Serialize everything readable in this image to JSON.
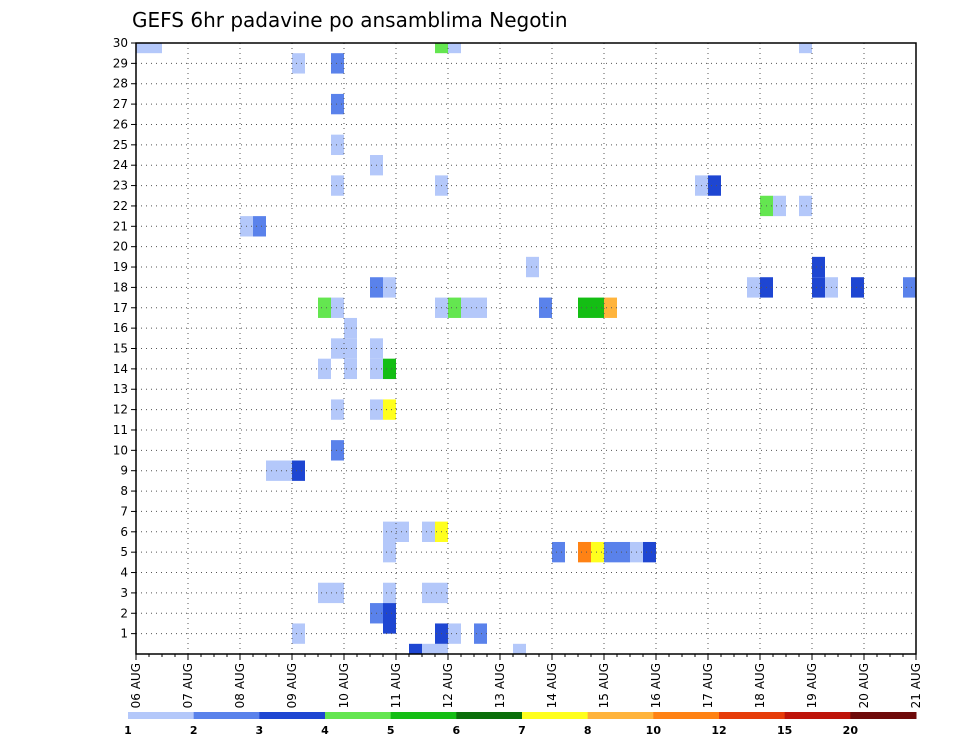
{
  "chart_data": {
    "type": "heatmap",
    "title": "GEFS 6hr padavine po ansamblima Negotin",
    "xlabel": "",
    "ylabel": "",
    "x_tick_labels": [
      "06 AUG",
      "07 AUG",
      "08 AUG",
      "09 AUG",
      "10 AUG",
      "11 AUG",
      "12 AUG",
      "13 AUG",
      "14 AUG",
      "15 AUG",
      "16 AUG",
      "17 AUG",
      "18 AUG",
      "19 AUG",
      "20 AUG",
      "21 AUG"
    ],
    "y_tick_labels": [
      "1",
      "2",
      "3",
      "4",
      "5",
      "6",
      "7",
      "8",
      "9",
      "10",
      "11",
      "12",
      "13",
      "14",
      "15",
      "16",
      "17",
      "18",
      "19",
      "20",
      "21",
      "22",
      "23",
      "24",
      "25",
      "26",
      "27",
      "28",
      "29",
      "30"
    ],
    "x_range_days": [
      0,
      15
    ],
    "y_range": [
      0,
      30
    ],
    "grid": true,
    "legend": {
      "placement": "bottom",
      "labels": [
        "1",
        "2",
        "3",
        "4",
        "5",
        "6",
        "7",
        "8",
        "10",
        "12",
        "15",
        "20"
      ],
      "colors": [
        "#b4c8fa",
        "#5a82eb",
        "#1e46d2",
        "#64e650",
        "#14be14",
        "#0a6e0a",
        "#ffff1e",
        "#ffb43c",
        "#ff8214",
        "#e63c0a",
        "#be140a",
        "#6e0a0a"
      ]
    },
    "cells": [
      {
        "day": 5.25,
        "member": 0,
        "level": 3
      },
      {
        "day": 5.5,
        "member": 0,
        "level": 1
      },
      {
        "day": 5.75,
        "member": 0,
        "level": 1
      },
      {
        "day": 5.75,
        "member": 1,
        "level": 3
      },
      {
        "day": 6.0,
        "member": 1,
        "level": 1
      },
      {
        "day": 6.5,
        "member": 1,
        "level": 2
      },
      {
        "day": 7.25,
        "member": 0,
        "level": 1
      },
      {
        "day": 0.0,
        "member": 30,
        "level": 1
      },
      {
        "day": 0.25,
        "member": 30,
        "level": 1
      },
      {
        "day": 5.75,
        "member": 30,
        "level": 4
      },
      {
        "day": 6.0,
        "member": 30,
        "level": 1
      },
      {
        "day": 12.75,
        "member": 30,
        "level": 1
      },
      {
        "day": 3.0,
        "member": 29,
        "level": 1
      },
      {
        "day": 3.75,
        "member": 29,
        "level": 2
      },
      {
        "day": 3.75,
        "member": 27,
        "level": 2
      },
      {
        "day": 3.75,
        "member": 25,
        "level": 1
      },
      {
        "day": 4.5,
        "member": 24,
        "level": 1
      },
      {
        "day": 3.75,
        "member": 23,
        "level": 1
      },
      {
        "day": 5.75,
        "member": 23,
        "level": 1
      },
      {
        "day": 10.75,
        "member": 23,
        "level": 1
      },
      {
        "day": 11.0,
        "member": 23,
        "level": 3
      },
      {
        "day": 12.0,
        "member": 22,
        "level": 4
      },
      {
        "day": 12.25,
        "member": 22,
        "level": 1
      },
      {
        "day": 12.75,
        "member": 22,
        "level": 1
      },
      {
        "day": 2.0,
        "member": 21,
        "level": 1
      },
      {
        "day": 2.25,
        "member": 21,
        "level": 2
      },
      {
        "day": 7.5,
        "member": 19,
        "level": 1
      },
      {
        "day": 13.0,
        "member": 19,
        "level": 3
      },
      {
        "day": 4.5,
        "member": 18,
        "level": 2
      },
      {
        "day": 4.75,
        "member": 18,
        "level": 1
      },
      {
        "day": 11.75,
        "member": 18,
        "level": 1
      },
      {
        "day": 12.0,
        "member": 18,
        "level": 3
      },
      {
        "day": 13.0,
        "member": 18,
        "level": 3
      },
      {
        "day": 13.25,
        "member": 18,
        "level": 1
      },
      {
        "day": 13.75,
        "member": 18,
        "level": 3
      },
      {
        "day": 14.75,
        "member": 18,
        "level": 2
      },
      {
        "day": 3.5,
        "member": 17,
        "level": 4
      },
      {
        "day": 3.75,
        "member": 17,
        "level": 1
      },
      {
        "day": 5.75,
        "member": 17,
        "level": 1
      },
      {
        "day": 6.0,
        "member": 17,
        "level": 4
      },
      {
        "day": 6.25,
        "member": 17,
        "level": 1
      },
      {
        "day": 6.5,
        "member": 17,
        "level": 1
      },
      {
        "day": 7.75,
        "member": 17,
        "level": 2
      },
      {
        "day": 8.5,
        "member": 17,
        "level": 5
      },
      {
        "day": 8.75,
        "member": 17,
        "level": 5
      },
      {
        "day": 9.0,
        "member": 17,
        "level": 8
      },
      {
        "day": 4.0,
        "member": 16,
        "level": 1
      },
      {
        "day": 3.75,
        "member": 15,
        "level": 1
      },
      {
        "day": 4.0,
        "member": 15,
        "level": 1
      },
      {
        "day": 4.5,
        "member": 15,
        "level": 1
      },
      {
        "day": 3.5,
        "member": 14,
        "level": 1
      },
      {
        "day": 4.0,
        "member": 14,
        "level": 1
      },
      {
        "day": 4.5,
        "member": 14,
        "level": 1
      },
      {
        "day": 4.75,
        "member": 14,
        "level": 5
      },
      {
        "day": 3.75,
        "member": 12,
        "level": 1
      },
      {
        "day": 4.5,
        "member": 12,
        "level": 1
      },
      {
        "day": 4.75,
        "member": 12,
        "level": 7
      },
      {
        "day": 3.75,
        "member": 10,
        "level": 2
      },
      {
        "day": 2.5,
        "member": 9,
        "level": 1
      },
      {
        "day": 2.75,
        "member": 9,
        "level": 1
      },
      {
        "day": 3.0,
        "member": 9,
        "level": 3
      },
      {
        "day": 4.75,
        "member": 6,
        "level": 1
      },
      {
        "day": 5.0,
        "member": 6,
        "level": 1
      },
      {
        "day": 5.5,
        "member": 6,
        "level": 1
      },
      {
        "day": 5.75,
        "member": 6,
        "level": 7
      },
      {
        "day": 4.75,
        "member": 5,
        "level": 1
      },
      {
        "day": 8.0,
        "member": 5,
        "level": 2
      },
      {
        "day": 8.5,
        "member": 5,
        "level": 9
      },
      {
        "day": 8.75,
        "member": 5,
        "level": 7
      },
      {
        "day": 9.0,
        "member": 5,
        "level": 2
      },
      {
        "day": 9.25,
        "member": 5,
        "level": 2
      },
      {
        "day": 9.5,
        "member": 5,
        "level": 1
      },
      {
        "day": 9.75,
        "member": 5,
        "level": 3
      },
      {
        "day": 3.5,
        "member": 3,
        "level": 1
      },
      {
        "day": 3.75,
        "member": 3,
        "level": 1
      },
      {
        "day": 4.75,
        "member": 3,
        "level": 1
      },
      {
        "day": 5.5,
        "member": 3,
        "level": 1
      },
      {
        "day": 5.75,
        "member": 3,
        "level": 1
      },
      {
        "day": 4.5,
        "member": 2,
        "level": 2
      },
      {
        "day": 4.75,
        "member": 2,
        "level": 3
      },
      {
        "day": 4.75,
        "member": 1.5,
        "level": 3
      },
      {
        "day": 3.0,
        "member": 1,
        "level": 1
      }
    ]
  }
}
